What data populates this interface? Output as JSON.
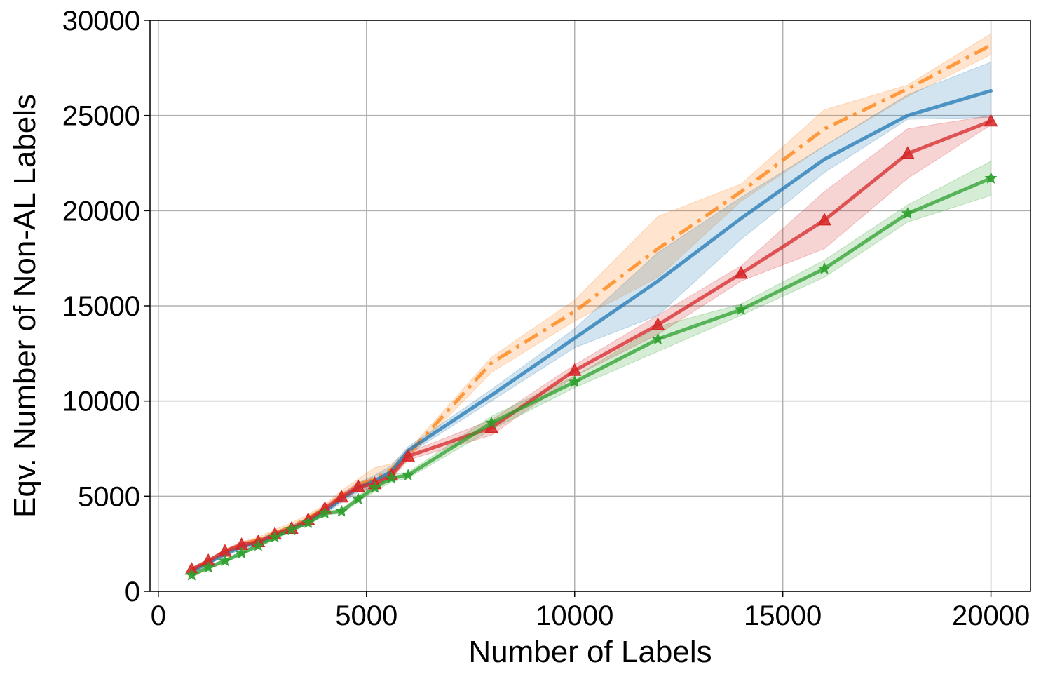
{
  "chart_data": {
    "type": "line",
    "title": "",
    "xlabel": "Number of Labels",
    "ylabel": "Eqv. Number of Non-AL Labels",
    "xlim": [
      -200,
      20950
    ],
    "ylim": [
      0,
      30000
    ],
    "xticks": [
      0,
      5000,
      10000,
      15000,
      20000
    ],
    "yticks": [
      0,
      5000,
      10000,
      15000,
      20000,
      25000,
      30000
    ],
    "grid": true,
    "legend": "none",
    "series": [
      {
        "color": "#ff7f0e",
        "style": "dashdot",
        "marker": "none",
        "x": [
          800,
          1200,
          1600,
          2000,
          2400,
          2800,
          3200,
          3600,
          4000,
          4400,
          4800,
          5200,
          5600,
          6000,
          8000,
          10000,
          12000,
          14000,
          16000,
          18000,
          20000
        ],
        "y": [
          1100,
          1550,
          2050,
          2450,
          2700,
          3050,
          3400,
          3850,
          4350,
          5000,
          5600,
          5900,
          6400,
          7200,
          12000,
          14700,
          18000,
          21000,
          24300,
          26400,
          28700
        ],
        "lower": [
          1000,
          1450,
          1950,
          2300,
          2550,
          2850,
          3200,
          3650,
          4150,
          4750,
          5300,
          5550,
          6000,
          7000,
          11500,
          14200,
          16500,
          20500,
          23400,
          26000,
          28200
        ],
        "upper": [
          1200,
          1650,
          2150,
          2600,
          2850,
          3250,
          3600,
          4050,
          4550,
          5300,
          5900,
          6500,
          6700,
          7400,
          12300,
          15300,
          19700,
          21400,
          25300,
          26600,
          29300
        ]
      },
      {
        "color": "#1f77b4",
        "style": "solid",
        "marker": "none",
        "x": [
          800,
          1200,
          1600,
          2000,
          2400,
          2800,
          3200,
          3600,
          4000,
          4400,
          4800,
          5200,
          5600,
          6000,
          8000,
          10000,
          12000,
          14000,
          16000,
          18000,
          20000
        ],
        "y": [
          1050,
          1500,
          1950,
          2350,
          2550,
          2950,
          3300,
          3700,
          4200,
          4850,
          5450,
          5800,
          6300,
          7400,
          10300,
          13300,
          16300,
          19600,
          22700,
          25000,
          26300
        ],
        "lower": [
          950,
          1400,
          1850,
          2200,
          2400,
          2800,
          3150,
          3550,
          4050,
          4650,
          5200,
          5500,
          6000,
          7200,
          10000,
          12800,
          14500,
          18500,
          22000,
          24800,
          24900
        ],
        "upper": [
          1150,
          1600,
          2050,
          2500,
          2700,
          3100,
          3450,
          3850,
          4350,
          5050,
          5700,
          6100,
          6600,
          7600,
          10600,
          13800,
          17800,
          20700,
          23400,
          26100,
          27800
        ]
      },
      {
        "color": "#d62728",
        "style": "solid",
        "marker": "triangle",
        "x": [
          800,
          1200,
          1600,
          2000,
          2400,
          2800,
          3200,
          3600,
          4000,
          4400,
          4800,
          5200,
          5600,
          6000,
          8000,
          10000,
          12000,
          14000,
          16000,
          18000,
          20000
        ],
        "y": [
          1150,
          1600,
          2100,
          2450,
          2600,
          3000,
          3300,
          3750,
          4350,
          4950,
          5500,
          5650,
          6100,
          7100,
          8600,
          11600,
          14000,
          16700,
          19500,
          23000,
          24700
        ],
        "lower": [
          1050,
          1500,
          2000,
          2300,
          2450,
          2850,
          3150,
          3600,
          4200,
          4750,
          5300,
          5400,
          5900,
          6900,
          8200,
          11300,
          13500,
          16300,
          18000,
          21700,
          24500
        ],
        "upper": [
          1250,
          1700,
          2200,
          2600,
          2750,
          3150,
          3450,
          3900,
          4500,
          5150,
          5700,
          5900,
          6300,
          7300,
          9000,
          11900,
          14500,
          17100,
          21000,
          24300,
          25000
        ]
      },
      {
        "color": "#2ca02c",
        "style": "solid",
        "marker": "star",
        "x": [
          800,
          1200,
          1600,
          2000,
          2400,
          2800,
          3200,
          3600,
          4000,
          4400,
          4800,
          5200,
          5600,
          6000,
          8000,
          10000,
          12000,
          14000,
          16000,
          18000,
          20000
        ],
        "y": [
          850,
          1250,
          1600,
          2000,
          2400,
          2850,
          3250,
          3600,
          4100,
          4200,
          4850,
          5450,
          5950,
          6100,
          8850,
          11000,
          13250,
          14800,
          16950,
          19850,
          21700
        ],
        "lower": [
          750,
          1150,
          1500,
          1900,
          2300,
          2750,
          3150,
          3500,
          4000,
          4100,
          4700,
          5250,
          5750,
          5950,
          8500,
          10700,
          12600,
          14500,
          16500,
          19400,
          20800
        ],
        "upper": [
          950,
          1350,
          1700,
          2100,
          2500,
          2950,
          3350,
          3700,
          4200,
          4300,
          5000,
          5650,
          6150,
          6250,
          9200,
          11300,
          13900,
          15100,
          17400,
          20300,
          22600
        ]
      }
    ]
  }
}
